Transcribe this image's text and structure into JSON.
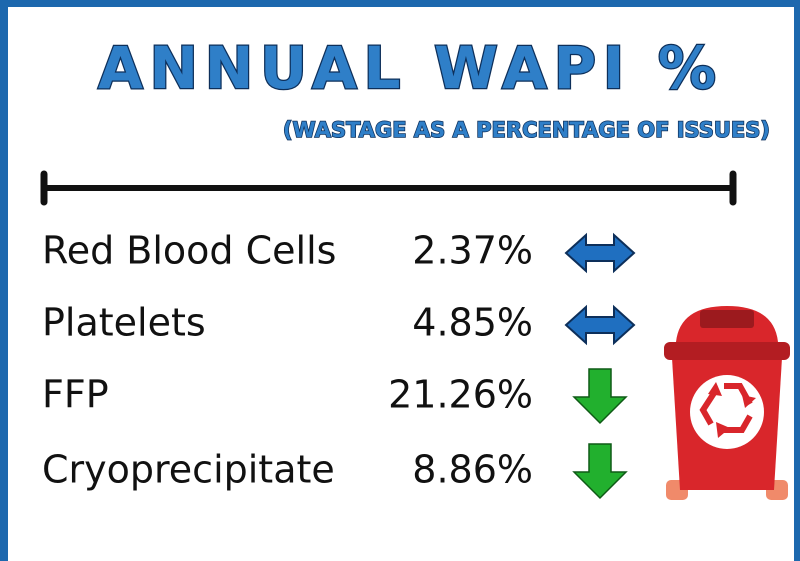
{
  "title": "ANNUAL WAPI %",
  "subtitle": "(WASTAGE AS A PERCENTAGE OF ISSUES)",
  "rows": [
    {
      "label": "Red Blood Cells",
      "value": "2.37%"
    },
    {
      "label": "Platelets",
      "value": "4.85%"
    },
    {
      "label": "FFP",
      "value": "21.26%"
    },
    {
      "label": "Cryoprecipitate",
      "value": "8.86%"
    }
  ]
}
